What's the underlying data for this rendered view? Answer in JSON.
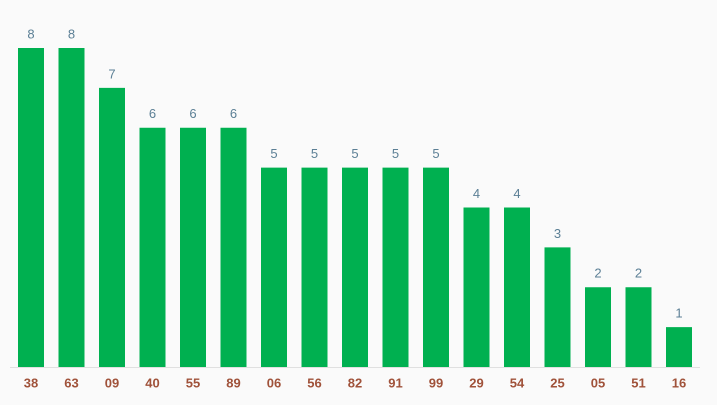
{
  "chart_data": {
    "type": "bar",
    "categories": [
      "38",
      "63",
      "09",
      "40",
      "55",
      "89",
      "06",
      "56",
      "82",
      "91",
      "99",
      "29",
      "54",
      "25",
      "05",
      "51",
      "16"
    ],
    "values": [
      8,
      8,
      7,
      6,
      6,
      6,
      5,
      5,
      5,
      5,
      5,
      4,
      4,
      3,
      2,
      2,
      1
    ],
    "color": "#00b050"
  }
}
